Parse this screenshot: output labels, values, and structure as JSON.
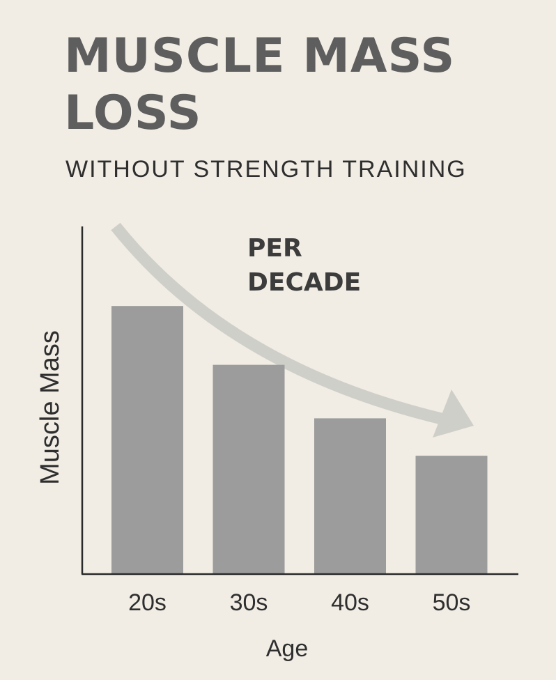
{
  "chart_data": {
    "type": "bar",
    "title": "MUSCLE MASS LOSS",
    "subtitle": "WITHOUT STRENGTH TRAINING",
    "annotation": "PER DECADE",
    "xlabel": "Age",
    "ylabel": "Muscle Mass",
    "categories": [
      "20s",
      "30s",
      "40s",
      "50s"
    ],
    "values": [
      100,
      78,
      58,
      44
    ],
    "ylim": [
      0,
      105
    ],
    "grid": false,
    "legend": "none",
    "colors": {
      "bar": "#9c9c9c",
      "arrow": "#cfcfc9",
      "axis": "#2a2a2a",
      "title": "#5e5e5e",
      "text": "#2e2e2e",
      "background": "#f1ede5"
    }
  }
}
